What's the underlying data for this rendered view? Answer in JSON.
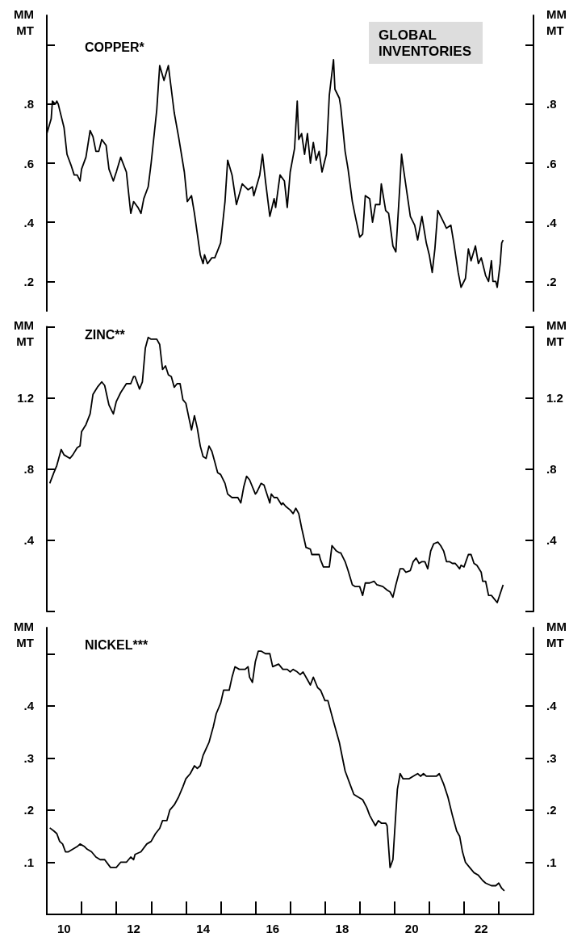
{
  "chart_data": [
    {
      "type": "line",
      "title": "COPPER*",
      "ylabel": "MM MT",
      "y2label": "MM MT",
      "annotations": [
        "GLOBAL INVENTORIES"
      ],
      "tick_labels": "y",
      "xlim": [
        "2010-01-01",
        "2024-01-01"
      ],
      "ylim": [
        0.1,
        1.1
      ],
      "y2lim": [
        0.1,
        1.1
      ],
      "yticks": [
        {
          "value": 0.2,
          "label": ".2"
        },
        {
          "value": 0.4,
          "label": ".4"
        },
        {
          "value": 0.6,
          "label": ".6"
        },
        {
          "value": 0.8,
          "label": ".8"
        },
        {
          "value": 1.0,
          "label": null
        }
      ],
      "y2ticks": [
        {
          "value": 0.2,
          "label": ".2"
        },
        {
          "value": 0.4,
          "label": ".4"
        },
        {
          "value": 0.6,
          "label": ".6"
        },
        {
          "value": 0.8,
          "label": ".8"
        },
        {
          "value": 1.0,
          "label": null
        }
      ],
      "x": [
        "2010-01-01",
        "2010-02-16",
        "2010-03-01",
        "2010-04-01",
        "2010-04-16",
        "2010-05-01",
        "2010-05-16",
        "2010-07-01",
        "2010-08-01",
        "2010-09-16",
        "2010-10-16",
        "2010-11-16",
        "2010-12-16",
        "2011-01-01",
        "2011-02-16",
        "2011-04-01",
        "2011-05-01",
        "2011-06-01",
        "2011-07-01",
        "2011-08-01",
        "2011-09-16",
        "2011-10-16",
        "2011-12-01",
        "2012-01-01",
        "2012-02-16",
        "2012-04-16",
        "2012-06-01",
        "2012-07-01",
        "2012-08-16",
        "2012-09-16",
        "2012-10-16",
        "2012-12-01",
        "2013-01-01",
        "2013-03-01",
        "2013-04-01",
        "2013-05-16",
        "2013-07-01",
        "2013-08-01",
        "2013-09-01",
        "2013-10-16",
        "2013-12-16",
        "2014-01-16",
        "2014-03-01",
        "2014-04-01",
        "2014-06-01",
        "2014-07-01",
        "2014-07-16",
        "2014-08-16",
        "2014-10-01",
        "2014-11-01",
        "2015-01-01",
        "2015-02-16",
        "2015-03-16",
        "2015-05-01",
        "2015-06-16",
        "2015-08-16",
        "2015-10-16",
        "2015-12-01",
        "2015-12-16",
        "2016-02-16",
        "2016-03-16",
        "2016-04-16",
        "2016-06-01",
        "2016-07-16",
        "2016-08-01",
        "2016-09-16",
        "2016-11-01",
        "2016-12-01",
        "2017-01-01",
        "2017-02-16",
        "2017-03-16",
        "2017-04-01",
        "2017-05-01",
        "2017-06-01",
        "2017-07-01",
        "2017-08-01",
        "2017-09-01",
        "2017-10-01",
        "2017-11-01",
        "2017-12-01",
        "2018-01-16",
        "2018-02-16",
        "2018-04-01",
        "2018-04-16",
        "2018-06-01",
        "2018-06-16",
        "2018-08-01",
        "2018-09-01",
        "2018-10-16",
        "2018-11-16",
        "2019-01-01",
        "2019-02-01",
        "2019-03-01",
        "2019-04-16",
        "2019-05-16",
        "2019-06-16",
        "2019-08-01",
        "2019-08-16",
        "2019-10-01",
        "2019-11-01",
        "2019-12-16",
        "2020-01-16",
        "2020-03-01",
        "2020-03-16",
        "2020-04-01",
        "2020-05-16",
        "2020-06-16",
        "2020-08-01",
        "2020-09-01",
        "2020-10-16",
        "2020-12-01",
        "2021-01-01",
        "2021-02-01",
        "2021-03-01",
        "2021-04-01",
        "2021-06-01",
        "2021-07-01",
        "2021-08-16",
        "2021-09-16",
        "2021-11-01",
        "2021-12-01",
        "2022-01-16",
        "2022-02-16",
        "2022-03-16",
        "2022-05-01",
        "2022-06-01",
        "2022-07-01",
        "2022-08-16",
        "2022-09-16",
        "2022-10-16",
        "2022-11-01",
        "2022-12-01",
        "2022-12-16",
        "2023-01-16",
        "2023-02-01",
        "2023-02-16"
      ],
      "series": [
        {
          "color": "#000000",
          "values": [
            0.7,
            0.75,
            0.81,
            0.8,
            0.81,
            0.8,
            0.78,
            0.72,
            0.63,
            0.59,
            0.56,
            0.56,
            0.54,
            0.58,
            0.62,
            0.71,
            0.69,
            0.64,
            0.64,
            0.68,
            0.66,
            0.58,
            0.54,
            0.57,
            0.62,
            0.57,
            0.43,
            0.47,
            0.45,
            0.43,
            0.48,
            0.52,
            0.6,
            0.78,
            0.93,
            0.88,
            0.93,
            0.85,
            0.77,
            0.69,
            0.57,
            0.47,
            0.49,
            0.43,
            0.29,
            0.26,
            0.29,
            0.26,
            0.28,
            0.28,
            0.33,
            0.47,
            0.61,
            0.56,
            0.46,
            0.53,
            0.51,
            0.52,
            0.49,
            0.56,
            0.63,
            0.54,
            0.42,
            0.48,
            0.45,
            0.56,
            0.54,
            0.45,
            0.57,
            0.65,
            0.81,
            0.68,
            0.7,
            0.63,
            0.7,
            0.6,
            0.67,
            0.61,
            0.64,
            0.57,
            0.63,
            0.83,
            0.95,
            0.85,
            0.82,
            0.79,
            0.64,
            0.58,
            0.47,
            0.42,
            0.35,
            0.36,
            0.49,
            0.48,
            0.4,
            0.46,
            0.46,
            0.53,
            0.44,
            0.43,
            0.32,
            0.3,
            0.54,
            0.63,
            0.59,
            0.49,
            0.42,
            0.39,
            0.34,
            0.42,
            0.33,
            0.29,
            0.23,
            0.31,
            0.44,
            0.4,
            0.38,
            0.39,
            0.33,
            0.23,
            0.18,
            0.21,
            0.31,
            0.27,
            0.32,
            0.26,
            0.28,
            0.22,
            0.2,
            0.27,
            0.2,
            0.2,
            0.18,
            0.26,
            0.33,
            0.34
          ]
        }
      ]
    },
    {
      "type": "line",
      "title": "ZINC**",
      "ylabel": "MM MT",
      "y2label": "MM MT",
      "tick_labels": "y",
      "xlim": [
        "2010-01-01",
        "2024-01-01"
      ],
      "ylim": [
        0,
        1.6
      ],
      "y2lim": [
        0,
        1.6
      ],
      "yticks": [
        {
          "value": 0,
          "label": null
        },
        {
          "value": 0.4,
          "label": ".4"
        },
        {
          "value": 0.8,
          "label": ".8"
        },
        1.2,
        {
          "value": 1.6,
          "label": null
        }
      ],
      "y2ticks": [
        {
          "value": 0,
          "label": null
        },
        {
          "value": 0.4,
          "label": ".4"
        },
        {
          "value": 0.8,
          "label": ".8"
        },
        1.2,
        {
          "value": 1.6,
          "label": null
        }
      ],
      "x": [
        "2010-02-01",
        "2010-03-16",
        "2010-04-16",
        "2010-06-01",
        "2010-07-01",
        "2010-09-01",
        "2010-10-01",
        "2010-11-16",
        "2010-12-16",
        "2011-01-01",
        "2011-02-16",
        "2011-04-01",
        "2011-05-01",
        "2011-06-16",
        "2011-08-01",
        "2011-09-01",
        "2011-10-16",
        "2011-12-01",
        "2012-01-01",
        "2012-02-16",
        "2012-04-16",
        "2012-06-01",
        "2012-07-01",
        "2012-07-16",
        "2012-09-01",
        "2012-10-01",
        "2012-11-01",
        "2012-12-01",
        "2013-01-01",
        "2013-03-01",
        "2013-04-01",
        "2013-05-01",
        "2013-06-01",
        "2013-07-01",
        "2013-08-01",
        "2013-09-01",
        "2013-10-01",
        "2013-11-01",
        "2013-12-01",
        "2014-01-01",
        "2014-02-01",
        "2014-03-01",
        "2014-04-01",
        "2014-05-01",
        "2014-06-01",
        "2014-07-01",
        "2014-08-01",
        "2014-09-01",
        "2014-10-01",
        "2014-11-01",
        "2014-12-01",
        "2015-01-01",
        "2015-02-16",
        "2015-03-16",
        "2015-05-01",
        "2015-06-01",
        "2015-07-01",
        "2015-08-01",
        "2015-09-01",
        "2015-10-01",
        "2015-11-01",
        "2016-01-01",
        "2016-01-16",
        "2016-03-01",
        "2016-04-01",
        "2016-05-01",
        "2016-06-01",
        "2016-06-16",
        "2016-07-16",
        "2016-08-16",
        "2016-10-01",
        "2016-10-16",
        "2016-11-16",
        "2017-01-01",
        "2017-02-01",
        "2017-03-01",
        "2017-04-01",
        "2017-05-01",
        "2017-06-16",
        "2017-08-01",
        "2017-08-16",
        "2017-10-01",
        "2017-11-01",
        "2017-11-16",
        "2017-12-16",
        "2018-01-16",
        "2018-02-16",
        "2018-03-16",
        "2018-05-01",
        "2018-06-01",
        "2018-06-16",
        "2018-08-01",
        "2018-09-01",
        "2018-10-16",
        "2018-11-16",
        "2019-01-01",
        "2019-02-01",
        "2019-03-01",
        "2019-04-16",
        "2019-06-01",
        "2019-07-01",
        "2019-09-01",
        "2019-10-16",
        "2019-11-16",
        "2019-12-16",
        "2020-01-16",
        "2020-03-01",
        "2020-04-01",
        "2020-05-01",
        "2020-06-16",
        "2020-07-16",
        "2020-08-16",
        "2020-09-16",
        "2020-10-16",
        "2020-11-16",
        "2020-12-16",
        "2021-01-16",
        "2021-02-16",
        "2021-04-01",
        "2021-05-01",
        "2021-06-01",
        "2021-07-01",
        "2021-08-01",
        "2021-09-01",
        "2021-10-01",
        "2021-11-16",
        "2021-12-01",
        "2022-01-01",
        "2022-02-16",
        "2022-03-16",
        "2022-04-16",
        "2022-05-16",
        "2022-07-01",
        "2022-07-16",
        "2022-08-16",
        "2022-09-16",
        "2022-10-16",
        "2022-11-16",
        "2022-12-16",
        "2023-01-16",
        "2023-02-16"
      ],
      "series": [
        {
          "color": "#000000",
          "values": [
            0.72,
            0.78,
            0.82,
            0.91,
            0.88,
            0.86,
            0.88,
            0.92,
            0.93,
            1.01,
            1.05,
            1.11,
            1.22,
            1.26,
            1.29,
            1.27,
            1.16,
            1.11,
            1.18,
            1.23,
            1.28,
            1.28,
            1.32,
            1.32,
            1.25,
            1.29,
            1.48,
            1.54,
            1.53,
            1.53,
            1.5,
            1.36,
            1.38,
            1.33,
            1.32,
            1.26,
            1.28,
            1.28,
            1.19,
            1.17,
            1.09,
            1.02,
            1.1,
            1.03,
            0.93,
            0.87,
            0.86,
            0.93,
            0.9,
            0.84,
            0.78,
            0.77,
            0.72,
            0.66,
            0.64,
            0.64,
            0.64,
            0.61,
            0.7,
            0.76,
            0.74,
            0.66,
            0.67,
            0.72,
            0.71,
            0.66,
            0.61,
            0.66,
            0.64,
            0.64,
            0.6,
            0.61,
            0.59,
            0.57,
            0.55,
            0.58,
            0.55,
            0.47,
            0.36,
            0.35,
            0.32,
            0.32,
            0.32,
            0.29,
            0.25,
            0.25,
            0.25,
            0.37,
            0.34,
            0.33,
            0.33,
            0.28,
            0.23,
            0.15,
            0.14,
            0.14,
            0.09,
            0.16,
            0.16,
            0.17,
            0.15,
            0.14,
            0.12,
            0.11,
            0.08,
            0.15,
            0.24,
            0.24,
            0.22,
            0.23,
            0.28,
            0.3,
            0.27,
            0.28,
            0.28,
            0.24,
            0.34,
            0.38,
            0.39,
            0.37,
            0.34,
            0.28,
            0.28,
            0.27,
            0.27,
            0.24,
            0.26,
            0.25,
            0.32,
            0.32,
            0.27,
            0.26,
            0.22,
            0.17,
            0.17,
            0.09,
            0.09,
            0.07,
            0.05,
            0.1,
            0.15
          ]
        }
      ]
    },
    {
      "type": "line",
      "title": "NICKEL***",
      "ylabel": "MM MT",
      "y2label": "MM MT",
      "xlim": [
        "2010-01-01",
        "2024-01-01"
      ],
      "ylim": [
        0,
        0.55
      ],
      "y2lim": [
        0,
        0.55
      ],
      "xticks": [
        {
          "value": "2011-01-01",
          "label": null
        },
        {
          "value": "2012-01-01",
          "label": null
        },
        {
          "value": "2013-01-01",
          "label": null
        },
        {
          "value": "2014-01-01",
          "label": null
        },
        {
          "value": "2015-01-01",
          "label": null
        },
        {
          "value": "2016-01-01",
          "label": null
        },
        {
          "value": "2017-01-01",
          "label": null
        },
        {
          "value": "2018-01-01",
          "label": null
        },
        {
          "value": "2019-01-01",
          "label": null
        },
        {
          "value": "2020-01-01",
          "label": null
        },
        {
          "value": "2021-01-01",
          "label": null
        },
        {
          "value": "2022-01-01",
          "label": null
        },
        {
          "value": "2023-01-01",
          "label": null
        },
        {
          "value": "2010-07-01",
          "label": "10"
        },
        {
          "value": "2012-07-01",
          "label": "12"
        },
        {
          "value": "2014-07-01",
          "label": "14"
        },
        {
          "value": "2016-07-01",
          "label": "16"
        },
        {
          "value": "2018-07-01",
          "label": "18"
        },
        {
          "value": "2020-07-01",
          "label": "20"
        },
        {
          "value": "2022-07-01",
          "label": "22"
        }
      ],
      "yticks": [
        {
          "value": 0.1,
          "label": ".1"
        },
        {
          "value": 0.2,
          "label": ".2"
        },
        {
          "value": 0.3,
          "label": ".3"
        },
        {
          "value": 0.4,
          "label": ".4"
        },
        {
          "value": 0.5,
          "label": null
        }
      ],
      "y2ticks": [
        {
          "value": 0.1,
          "label": ".1"
        },
        {
          "value": 0.2,
          "label": ".2"
        },
        {
          "value": 0.3,
          "label": ".3"
        },
        {
          "value": 0.4,
          "label": ".4"
        },
        {
          "value": 0.5,
          "label": null
        }
      ],
      "x": [
        "2010-02-01",
        "2010-03-16",
        "2010-04-16",
        "2010-05-16",
        "2010-06-16",
        "2010-07-16",
        "2010-08-16",
        "2010-10-01",
        "2010-11-16",
        "2010-12-16",
        "2011-02-01",
        "2011-03-01",
        "2011-04-16",
        "2011-06-01",
        "2011-07-16",
        "2011-09-01",
        "2011-11-01",
        "2011-12-01",
        "2012-01-01",
        "2012-02-16",
        "2012-04-16",
        "2012-06-01",
        "2012-07-01",
        "2012-07-16",
        "2012-09-16",
        "2012-11-16",
        "2013-01-01",
        "2013-02-16",
        "2013-04-01",
        "2013-05-01",
        "2013-06-16",
        "2013-07-16",
        "2013-09-01",
        "2013-10-16",
        "2013-12-01",
        "2014-01-01",
        "2014-02-16",
        "2014-04-01",
        "2014-05-01",
        "2014-06-01",
        "2014-07-01",
        "2014-09-01",
        "2014-10-16",
        "2014-11-16",
        "2015-01-01",
        "2015-02-01",
        "2015-04-01",
        "2015-05-01",
        "2015-06-01",
        "2015-07-16",
        "2015-08-16",
        "2015-09-16",
        "2015-10-16",
        "2015-11-01",
        "2015-12-01",
        "2016-01-01",
        "2016-02-01",
        "2016-03-01",
        "2016-04-16",
        "2016-06-01",
        "2016-07-01",
        "2016-09-01",
        "2016-10-16",
        "2016-12-01",
        "2017-01-01",
        "2017-02-01",
        "2017-03-16",
        "2017-04-16",
        "2017-05-16",
        "2017-07-01",
        "2017-08-01",
        "2017-09-01",
        "2017-10-16",
        "2017-11-16",
        "2018-01-01",
        "2018-02-01",
        "2018-04-01",
        "2018-06-01",
        "2018-08-01",
        "2018-10-01",
        "2018-11-01",
        "2018-12-16",
        "2019-02-01",
        "2019-03-16",
        "2019-04-16",
        "2019-05-16",
        "2019-06-16",
        "2019-07-16",
        "2019-08-16",
        "2019-10-01",
        "2019-10-16",
        "2019-11-16",
        "2019-12-16",
        "2020-01-16",
        "2020-02-01",
        "2020-03-01",
        "2020-04-01",
        "2020-06-01",
        "2020-07-16",
        "2020-09-01",
        "2020-10-01",
        "2020-11-01",
        "2020-12-01",
        "2021-01-01",
        "2021-02-01",
        "2021-03-16",
        "2021-04-16",
        "2021-06-01",
        "2021-07-16",
        "2021-09-01",
        "2021-10-16",
        "2021-11-16",
        "2021-12-16",
        "2022-01-16",
        "2022-03-01",
        "2022-04-16",
        "2022-06-01",
        "2022-07-16",
        "2022-08-16",
        "2022-10-16",
        "2022-12-01",
        "2023-01-01",
        "2023-02-01",
        "2023-03-01"
      ],
      "series": [
        {
          "color": "#000000",
          "values": [
            0.166,
            0.16,
            0.155,
            0.14,
            0.135,
            0.12,
            0.12,
            0.125,
            0.13,
            0.135,
            0.13,
            0.125,
            0.12,
            0.11,
            0.105,
            0.105,
            0.09,
            0.09,
            0.09,
            0.1,
            0.1,
            0.11,
            0.105,
            0.115,
            0.12,
            0.135,
            0.14,
            0.155,
            0.165,
            0.18,
            0.18,
            0.2,
            0.21,
            0.225,
            0.245,
            0.26,
            0.27,
            0.285,
            0.28,
            0.285,
            0.305,
            0.33,
            0.36,
            0.385,
            0.405,
            0.43,
            0.43,
            0.455,
            0.475,
            0.47,
            0.47,
            0.47,
            0.475,
            0.455,
            0.445,
            0.485,
            0.505,
            0.505,
            0.5,
            0.5,
            0.475,
            0.48,
            0.47,
            0.47,
            0.465,
            0.47,
            0.465,
            0.46,
            0.465,
            0.45,
            0.44,
            0.455,
            0.435,
            0.43,
            0.41,
            0.41,
            0.37,
            0.33,
            0.275,
            0.245,
            0.23,
            0.225,
            0.22,
            0.205,
            0.19,
            0.18,
            0.17,
            0.18,
            0.175,
            0.175,
            0.17,
            0.09,
            0.105,
            0.195,
            0.24,
            0.27,
            0.26,
            0.26,
            0.265,
            0.27,
            0.265,
            0.27,
            0.265,
            0.265,
            0.265,
            0.265,
            0.27,
            0.25,
            0.225,
            0.19,
            0.16,
            0.15,
            0.12,
            0.1,
            0.09,
            0.08,
            0.075,
            0.065,
            0.06,
            0.055,
            0.055,
            0.06,
            0.05,
            0.045
          ]
        }
      ]
    }
  ]
}
